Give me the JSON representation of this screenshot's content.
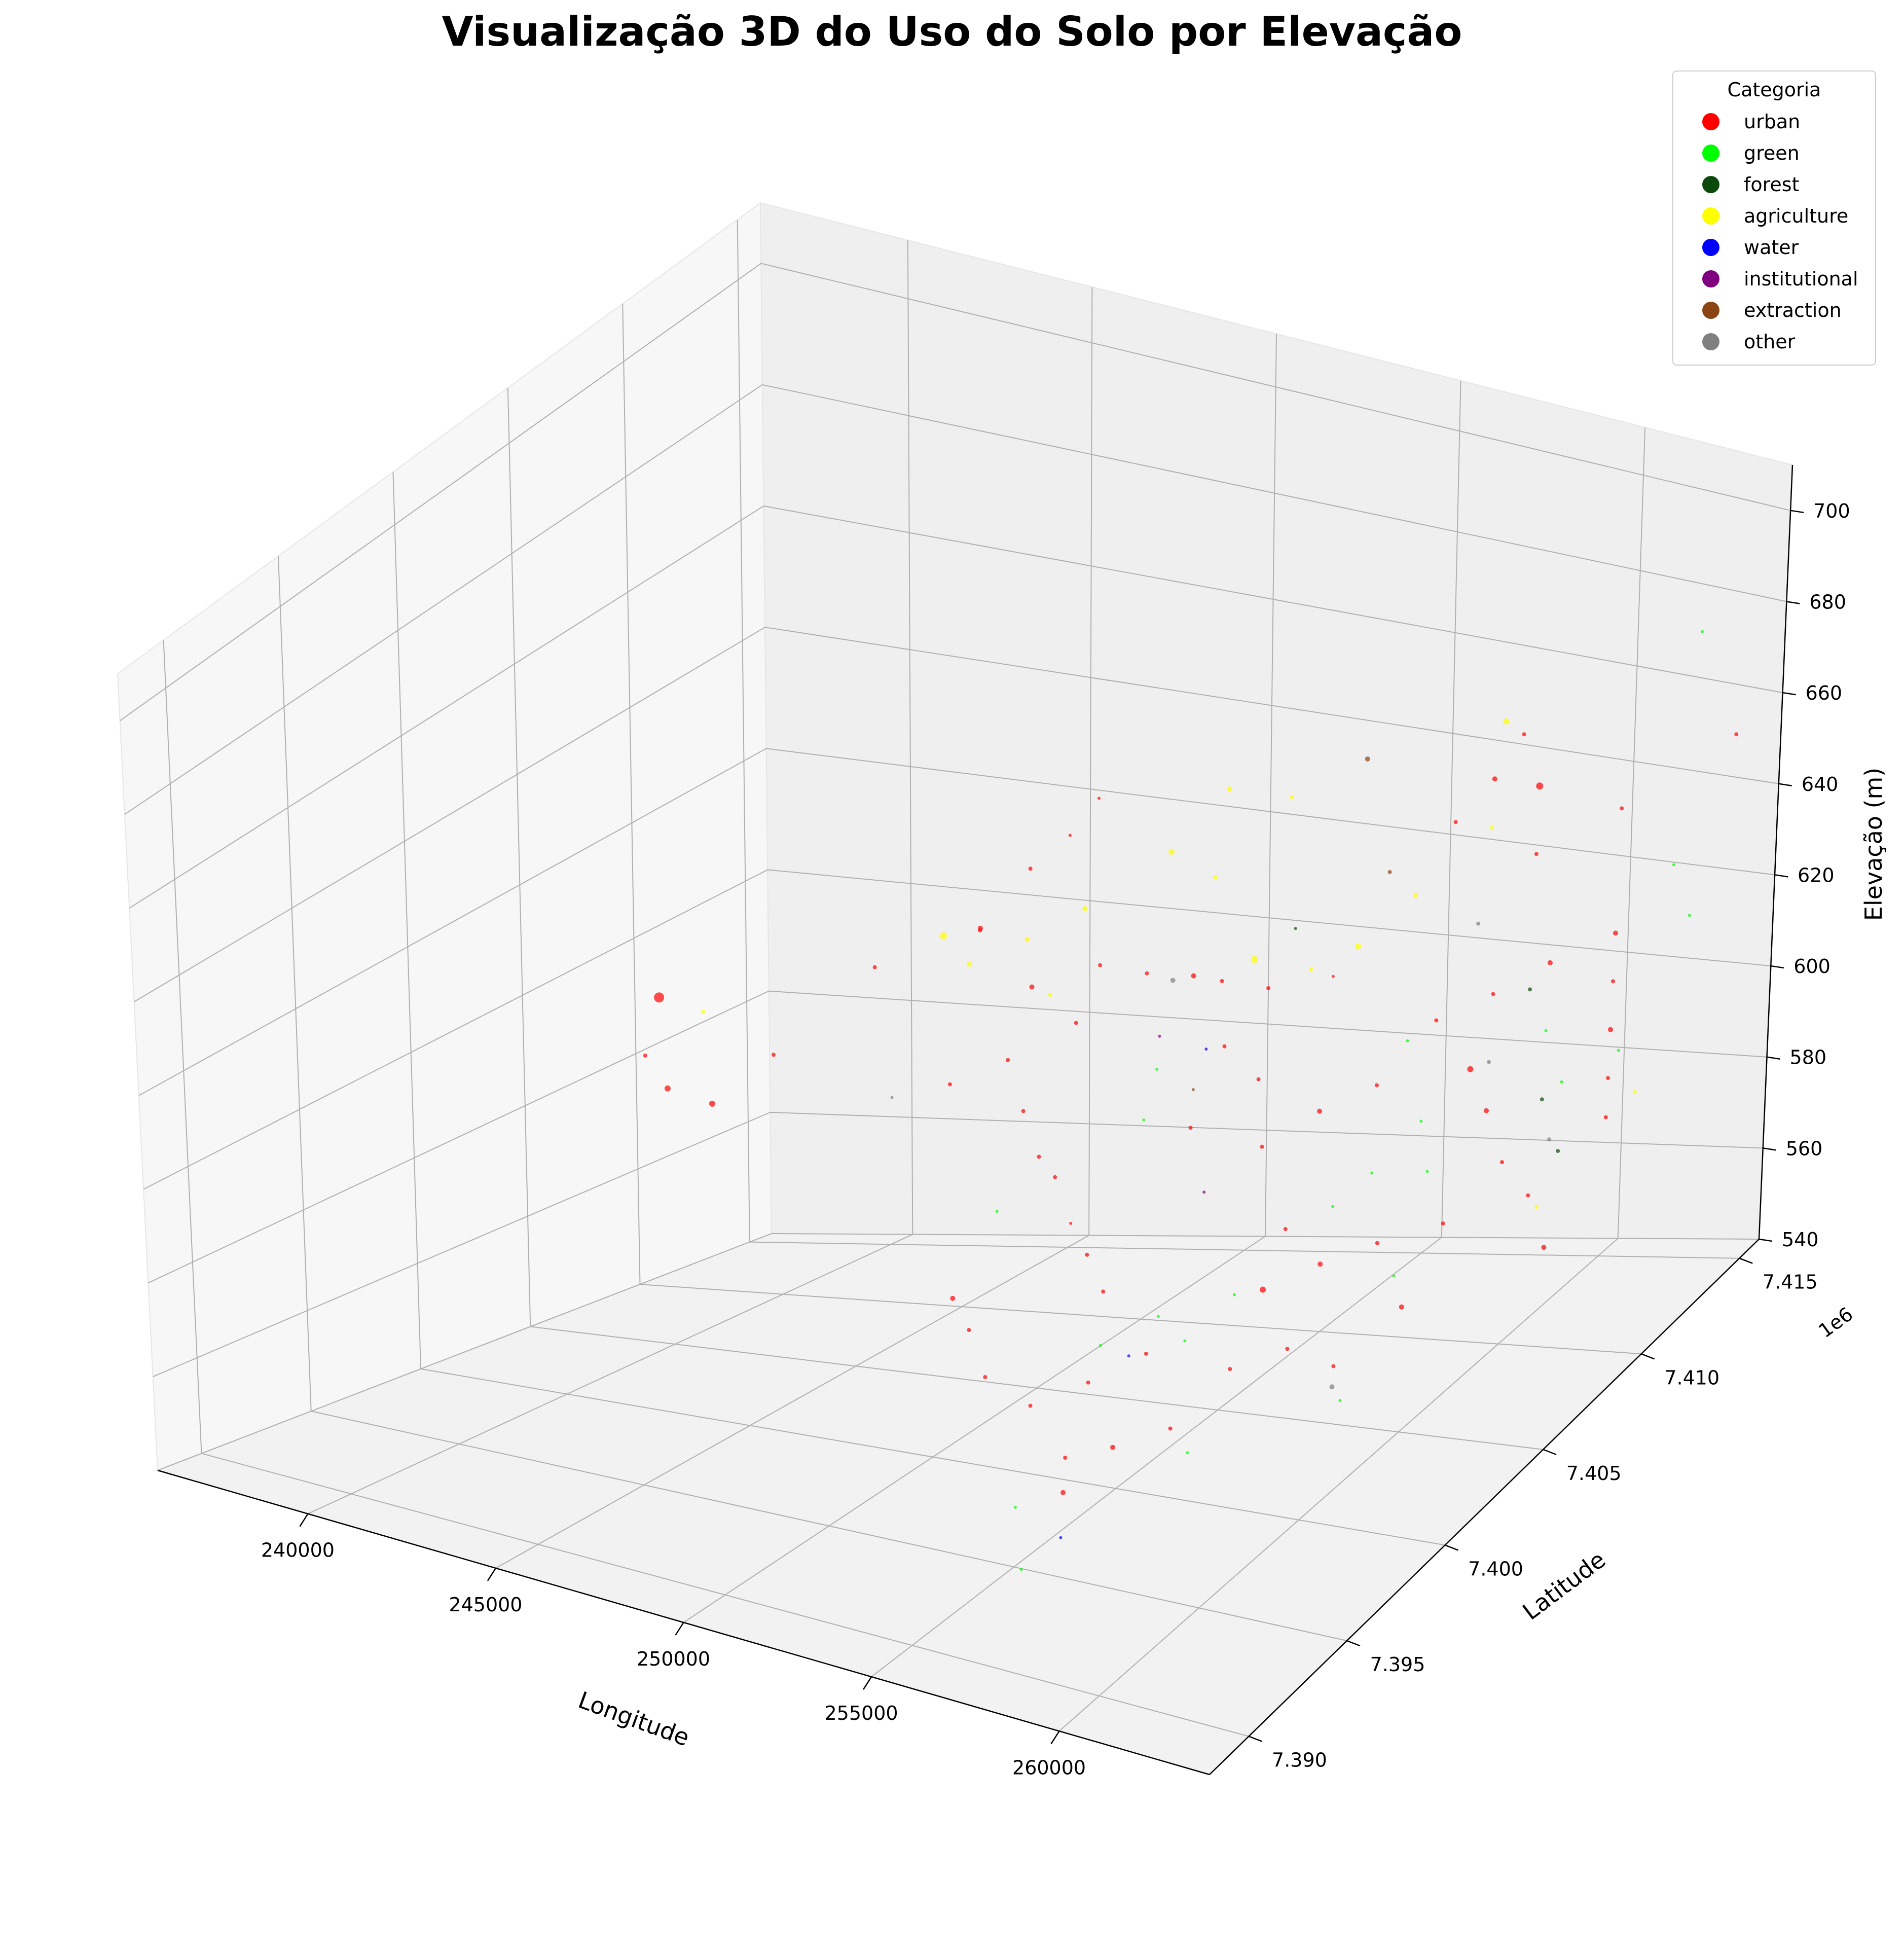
{
  "chart_data": {
    "type": "scatter",
    "projection": "3d",
    "title": "Visualização 3D do Uso do Solo por Elevação",
    "xlabel": "Longitude",
    "ylabel": "Latitude",
    "zlabel": "Elevação (m)",
    "xlim": [
      236000,
      264000
    ],
    "ylim": [
      7388000,
      7416000
    ],
    "zlim": [
      540,
      710
    ],
    "xticks": [
      "240000",
      "245000",
      "250000",
      "255000",
      "260000"
    ],
    "yticks": [
      "7.390",
      "7.395",
      "7.400",
      "7.405",
      "7.410",
      "7.415"
    ],
    "y_offset_label": "1e6",
    "zticks": [
      "540",
      "560",
      "580",
      "600",
      "620",
      "640",
      "660",
      "680",
      "700"
    ],
    "grid": true,
    "legend": {
      "title": "Categoria",
      "position": "top-right",
      "entries": [
        {
          "name": "urban",
          "color": "#ff0000"
        },
        {
          "name": "green",
          "color": "#00ff00"
        },
        {
          "name": "forest",
          "color": "#0b4a0b"
        },
        {
          "name": "agriculture",
          "color": "#ffff00"
        },
        {
          "name": "water",
          "color": "#0000ff"
        },
        {
          "name": "institutional",
          "color": "#800080"
        },
        {
          "name": "extraction",
          "color": "#8b4513"
        },
        {
          "name": "other",
          "color": "#808080"
        }
      ]
    },
    "series": [
      {
        "name": "urban",
        "color": "#ff0000",
        "points": [
          [
            238500,
            7407000,
            598,
            10
          ],
          [
            240500,
            7404000,
            590,
            6
          ],
          [
            242000,
            7403500,
            590,
            6
          ],
          [
            240800,
            7402500,
            600,
            4
          ],
          [
            242500,
            7405500,
            595,
            4
          ],
          [
            243500,
            7408500,
            605,
            4
          ],
          [
            245500,
            7410000,
            610,
            4
          ],
          [
            246000,
            7411500,
            618,
            4
          ],
          [
            246500,
            7412500,
            622,
            3
          ],
          [
            247000,
            7413000,
            628,
            3
          ],
          [
            245800,
            7409500,
            612,
            5
          ],
          [
            247500,
            7409000,
            604,
            5
          ],
          [
            248500,
            7410500,
            605,
            4
          ],
          [
            249500,
            7411000,
            603,
            4
          ],
          [
            250500,
            7411500,
            602,
            5
          ],
          [
            251000,
            7412000,
            600,
            4
          ],
          [
            252000,
            7412500,
            598,
            4
          ],
          [
            253500,
            7413000,
            600,
            3
          ],
          [
            249000,
            7406000,
            590,
            4
          ],
          [
            250000,
            7405000,
            585,
            4
          ],
          [
            251000,
            7404000,
            585,
            4
          ],
          [
            252000,
            7403000,
            580,
            3
          ],
          [
            253000,
            7402000,
            578,
            4
          ],
          [
            254000,
            7401000,
            575,
            4
          ],
          [
            250500,
            7400000,
            572,
            5
          ],
          [
            251500,
            7399000,
            570,
            4
          ],
          [
            252500,
            7398000,
            565,
            4
          ],
          [
            254000,
            7397500,
            563,
            4
          ],
          [
            255000,
            7398500,
            566,
            4
          ],
          [
            256000,
            7399500,
            570,
            4
          ],
          [
            255500,
            7396500,
            558,
            4
          ],
          [
            256500,
            7397000,
            560,
            5
          ],
          [
            257500,
            7398000,
            562,
            4
          ],
          [
            256000,
            7395500,
            555,
            5
          ],
          [
            258000,
            7400000,
            568,
            4
          ],
          [
            259000,
            7401000,
            570,
            4
          ],
          [
            257500,
            7402500,
            575,
            6
          ],
          [
            258500,
            7403500,
            578,
            5
          ],
          [
            259500,
            7404500,
            580,
            4
          ],
          [
            255500,
            7406000,
            590,
            4
          ],
          [
            256500,
            7407000,
            595,
            5
          ],
          [
            257500,
            7408000,
            598,
            4
          ],
          [
            258000,
            7410000,
            605,
            4
          ],
          [
            259000,
            7411000,
            608,
            4
          ],
          [
            260000,
            7412000,
            612,
            5
          ],
          [
            259500,
            7409000,
            600,
            6
          ],
          [
            260500,
            7408000,
            596,
            5
          ],
          [
            261500,
            7407000,
            590,
            4
          ],
          [
            256500,
            7413500,
            632,
            4
          ],
          [
            257000,
            7414500,
            638,
            5
          ],
          [
            257500,
            7415000,
            646,
            4
          ],
          [
            258500,
            7414000,
            640,
            7
          ],
          [
            259000,
            7413000,
            630,
            4
          ],
          [
            260500,
            7414500,
            636,
            4
          ],
          [
            261500,
            7412500,
            618,
            5
          ],
          [
            262000,
            7411500,
            612,
            4
          ],
          [
            262500,
            7410500,
            606,
            5
          ],
          [
            263000,
            7409500,
            600,
            4
          ],
          [
            263500,
            7408500,
            596,
            4
          ],
          [
            262500,
            7406500,
            586,
            4
          ],
          [
            263500,
            7405500,
            580,
            5
          ],
          [
            263800,
            7414000,
            658,
            4
          ],
          [
            261000,
            7405000,
            584,
            4
          ],
          [
            253000,
            7407000,
            588,
            4
          ],
          [
            254000,
            7408500,
            594,
            4
          ],
          [
            252500,
            7409500,
            596,
            4
          ],
          [
            248000,
            7407000,
            596,
            4
          ],
          [
            247000,
            7406000,
            593,
            4
          ],
          [
            249000,
            7408500,
            600,
            4
          ],
          [
            260000,
            7401500,
            566,
            4
          ],
          [
            261000,
            7403000,
            574,
            5
          ],
          [
            257000,
            7404500,
            580,
            4
          ]
        ]
      },
      {
        "name": "green",
        "color": "#00ff00",
        "points": [
          [
            251500,
            7408000,
            595,
            3
          ],
          [
            252000,
            7406500,
            590,
            3
          ],
          [
            254500,
            7400000,
            568,
            3
          ],
          [
            255500,
            7401000,
            572,
            3
          ],
          [
            256500,
            7400500,
            570,
            3
          ],
          [
            257000,
            7402000,
            575,
            3
          ],
          [
            258000,
            7405000,
            584,
            3
          ],
          [
            258500,
            7406000,
            588,
            3
          ],
          [
            259000,
            7407500,
            594,
            3
          ],
          [
            260000,
            7406000,
            590,
            3
          ],
          [
            261000,
            7410000,
            606,
            3
          ],
          [
            262000,
            7409000,
            600,
            3
          ],
          [
            263000,
            7410000,
            604,
            3
          ],
          [
            262500,
            7413500,
            630,
            3
          ],
          [
            263500,
            7412500,
            624,
            3
          ],
          [
            256000,
            7393500,
            546,
            3
          ],
          [
            255000,
            7395000,
            552,
            3
          ],
          [
            260500,
            7403500,
            578,
            3
          ],
          [
            262000,
            7415500,
            672,
            3
          ],
          [
            257500,
            7409500,
            602,
            3
          ],
          [
            250000,
            7403000,
            580,
            3
          ],
          [
            258500,
            7397000,
            562,
            3
          ],
          [
            261500,
            7399000,
            570,
            3
          ]
        ]
      },
      {
        "name": "forest",
        "color": "#0b4a0b",
        "points": [
          [
            262000,
            7408000,
            600,
            4
          ],
          [
            263000,
            7407000,
            594,
            4
          ],
          [
            260000,
            7411000,
            610,
            4
          ],
          [
            253000,
            7412000,
            612,
            3
          ]
        ]
      },
      {
        "name": "agriculture",
        "color": "#ffff00",
        "points": [
          [
            240000,
            7406500,
            598,
            4
          ],
          [
            244500,
            7410000,
            608,
            7
          ],
          [
            245500,
            7409500,
            605,
            5
          ],
          [
            246500,
            7410500,
            608,
            5
          ],
          [
            247500,
            7411500,
            612,
            5
          ],
          [
            249000,
            7413000,
            620,
            6
          ],
          [
            250000,
            7414000,
            630,
            5
          ],
          [
            250500,
            7412500,
            618,
            4
          ],
          [
            252000,
            7413500,
            632,
            4
          ],
          [
            253000,
            7410000,
            612,
            7
          ],
          [
            254000,
            7411000,
            608,
            4
          ],
          [
            255000,
            7411500,
            612,
            6
          ],
          [
            256000,
            7412500,
            620,
            5
          ],
          [
            257000,
            7415000,
            648,
            6
          ],
          [
            257500,
            7413500,
            632,
            4
          ],
          [
            264000,
            7409000,
            600,
            4
          ],
          [
            263000,
            7406000,
            586,
            4
          ],
          [
            248000,
            7409000,
            603,
            4
          ]
        ]
      },
      {
        "name": "water",
        "color": "#0000ff",
        "points": [
          [
            256500,
            7394500,
            550,
            3
          ],
          [
            252000,
            7409500,
            595,
            3
          ],
          [
            255000,
            7400500,
            565,
            3
          ]
        ]
      },
      {
        "name": "institutional",
        "color": "#800080",
        "points": [
          [
            251000,
            7409000,
            598,
            3
          ],
          [
            254500,
            7405000,
            583,
            3
          ]
        ]
      },
      {
        "name": "extraction",
        "color": "#8b4513",
        "points": [
          [
            253500,
            7414500,
            638,
            5
          ],
          [
            255000,
            7413000,
            622,
            4
          ],
          [
            252500,
            7408000,
            592,
            3
          ]
        ]
      },
      {
        "name": "other",
        "color": "#808080",
        "points": [
          [
            250500,
            7410500,
            604,
            5
          ],
          [
            258000,
            7412000,
            618,
            4
          ],
          [
            260500,
            7400500,
            566,
            5
          ],
          [
            260000,
            7409000,
            602,
            4
          ],
          [
            246000,
            7405000,
            592,
            3
          ],
          [
            262500,
            7407500,
            594,
            4
          ]
        ]
      }
    ]
  }
}
